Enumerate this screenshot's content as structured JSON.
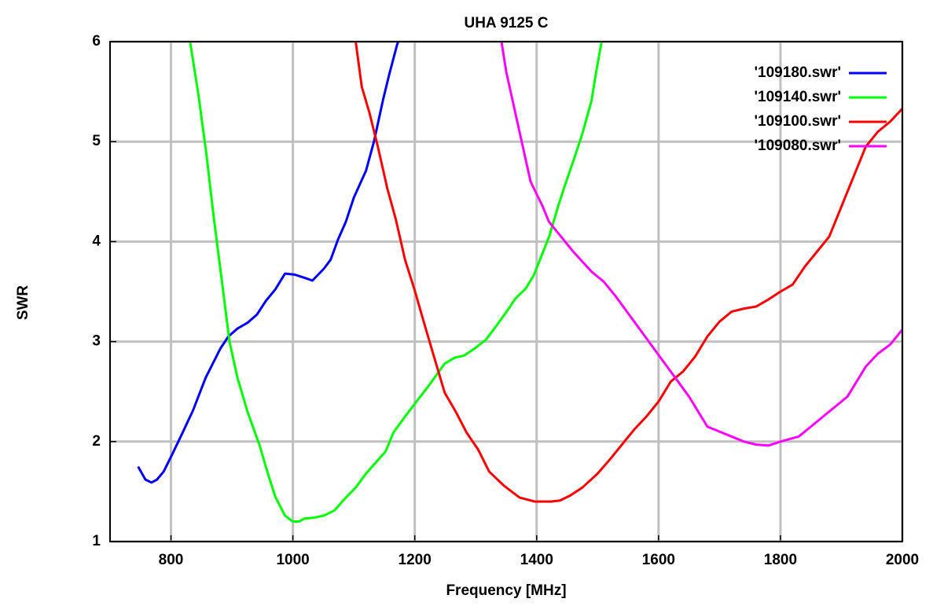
{
  "chart_data": {
    "type": "line",
    "title": "UHA 9125 C",
    "x_label": "Frequency [MHz]",
    "y_label": "SWR",
    "xlim": [
      700,
      2000
    ],
    "ylim": [
      1,
      6
    ],
    "xticks": [
      800,
      1000,
      1200,
      1400,
      1600,
      1800,
      2000
    ],
    "yticks": [
      1,
      2,
      3,
      4,
      5,
      6
    ],
    "grid": true,
    "legend": "top-right",
    "series": [
      {
        "name": "'109180.swr'",
        "color": "#0000ff",
        "x": [
          746,
          758,
          768,
          777,
          788,
          801,
          816,
          836,
          857,
          881,
          894,
          909,
          926,
          941,
          956,
          971,
          987,
          1003,
          1023,
          1032,
          1051,
          1062,
          1074,
          1087,
          1100,
          1120,
          1133,
          1148,
          1158,
          1171,
          1176
        ],
        "values": [
          1.75,
          1.62,
          1.59,
          1.62,
          1.7,
          1.86,
          2.05,
          2.31,
          2.64,
          2.93,
          3.05,
          3.13,
          3.19,
          3.27,
          3.41,
          3.52,
          3.68,
          3.67,
          3.63,
          3.61,
          3.73,
          3.82,
          4.02,
          4.2,
          4.44,
          4.71,
          5.0,
          5.42,
          5.67,
          5.97,
          6.05
        ]
      },
      {
        "name": "'109140.swr'",
        "color": "#00ff00",
        "x": [
          830,
          845,
          858,
          870,
          883,
          896,
          909,
          926,
          945,
          958,
          971,
          987,
          1000,
          1010,
          1019,
          1036,
          1051,
          1068,
          1087,
          1103,
          1120,
          1136,
          1152,
          1165,
          1184,
          1204,
          1223,
          1236,
          1249,
          1266,
          1281,
          1298,
          1317,
          1333,
          1352,
          1365,
          1382,
          1395,
          1410,
          1421,
          1436,
          1449,
          1462,
          1475,
          1490,
          1498,
          1508
        ],
        "values": [
          6.05,
          5.47,
          4.88,
          4.25,
          3.63,
          3.0,
          2.64,
          2.29,
          1.97,
          1.7,
          1.45,
          1.26,
          1.2,
          1.2,
          1.23,
          1.24,
          1.26,
          1.31,
          1.44,
          1.54,
          1.68,
          1.79,
          1.9,
          2.09,
          2.25,
          2.41,
          2.56,
          2.67,
          2.78,
          2.84,
          2.86,
          2.93,
          3.02,
          3.15,
          3.31,
          3.43,
          3.53,
          3.66,
          3.89,
          4.06,
          4.37,
          4.61,
          4.84,
          5.08,
          5.41,
          5.71,
          6.05
        ]
      },
      {
        "name": "'109100.swr'",
        "color": "#ff0000",
        "x": [
          1102,
          1113,
          1126,
          1139,
          1155,
          1169,
          1184,
          1200,
          1217,
          1232,
          1249,
          1268,
          1285,
          1304,
          1322,
          1346,
          1372,
          1397,
          1423,
          1438,
          1455,
          1475,
          1500,
          1520,
          1540,
          1560,
          1580,
          1600,
          1620,
          1640,
          1660,
          1680,
          1700,
          1720,
          1740,
          1760,
          1780,
          1800,
          1820,
          1840,
          1860,
          1880,
          1900,
          1920,
          1940,
          1960,
          1980,
          2000
        ],
        "values": [
          6.05,
          5.55,
          5.28,
          4.96,
          4.53,
          4.22,
          3.82,
          3.51,
          3.15,
          2.84,
          2.49,
          2.29,
          2.09,
          1.92,
          1.7,
          1.56,
          1.44,
          1.4,
          1.4,
          1.41,
          1.46,
          1.54,
          1.68,
          1.82,
          1.97,
          2.12,
          2.25,
          2.4,
          2.6,
          2.7,
          2.85,
          3.05,
          3.2,
          3.3,
          3.33,
          3.35,
          3.42,
          3.5,
          3.57,
          3.75,
          3.9,
          4.05,
          4.35,
          4.65,
          4.95,
          5.1,
          5.2,
          5.33
        ]
      },
      {
        "name": "'109080.swr'",
        "color": "#ff00ff",
        "x": [
          1341,
          1350,
          1370,
          1390,
          1410,
          1420,
          1440,
          1460,
          1490,
          1510,
          1530,
          1560,
          1590,
          1620,
          1650,
          1680,
          1700,
          1720,
          1740,
          1760,
          1780,
          1800,
          1830,
          1860,
          1880,
          1910,
          1940,
          1960,
          1980,
          2000
        ],
        "values": [
          6.05,
          5.7,
          5.15,
          4.6,
          4.35,
          4.2,
          4.05,
          3.9,
          3.7,
          3.6,
          3.45,
          3.2,
          2.95,
          2.7,
          2.45,
          2.15,
          2.1,
          2.05,
          2.0,
          1.97,
          1.96,
          2.0,
          2.05,
          2.2,
          2.3,
          2.45,
          2.75,
          2.88,
          2.97,
          3.12
        ]
      }
    ]
  }
}
